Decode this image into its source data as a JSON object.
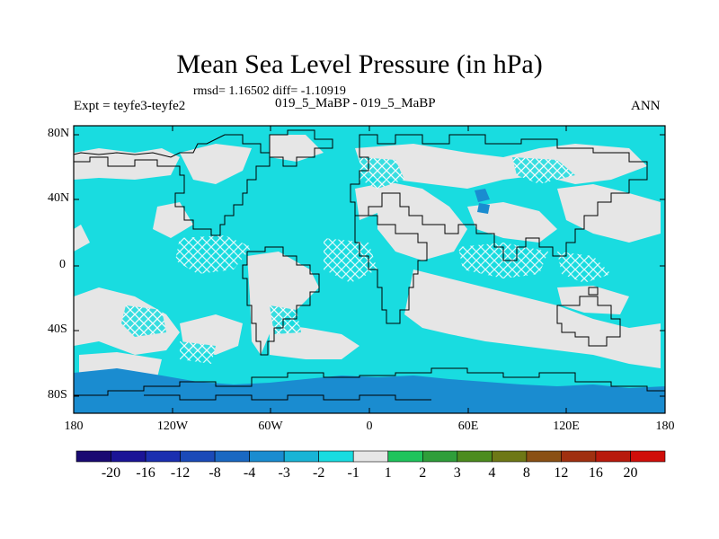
{
  "title": "Mean Sea Level Pressure (in hPa)",
  "stats_line": "rmsd= 1.16502 diff= -1.10919",
  "left_label": "Expt = teyfe3-teyfe2",
  "center_label": "019_5_MaBP - 019_5_MaBP",
  "right_label": "ANN",
  "lat_labels": [
    "80N",
    "40N",
    "0",
    "40S",
    "80S"
  ],
  "lon_labels": [
    "180",
    "120W",
    "60W",
    "0",
    "60E",
    "120E",
    "180"
  ],
  "colorbar": {
    "labels": [
      "-20",
      "-16",
      "-12",
      "-8",
      "-4",
      "-3",
      "-2",
      "-1",
      "1",
      "2",
      "3",
      "4",
      "8",
      "12",
      "16",
      "20"
    ],
    "colors": [
      "#1a0a72",
      "#1b1496",
      "#1b2fb0",
      "#1b4ab8",
      "#1a68c2",
      "#1a8cd0",
      "#19b4d6",
      "#19dce0",
      "#e6e6e6",
      "#1fc45c",
      "#2f9e3a",
      "#4c8c1e",
      "#6e7816",
      "#8a5014",
      "#a03010",
      "#b81a0c",
      "#d00e0a"
    ]
  },
  "colors": {
    "ocean_fill": "#19dce0",
    "neutral_fill": "#e6e6e6",
    "deep_fill": "#1a8cd0"
  }
}
